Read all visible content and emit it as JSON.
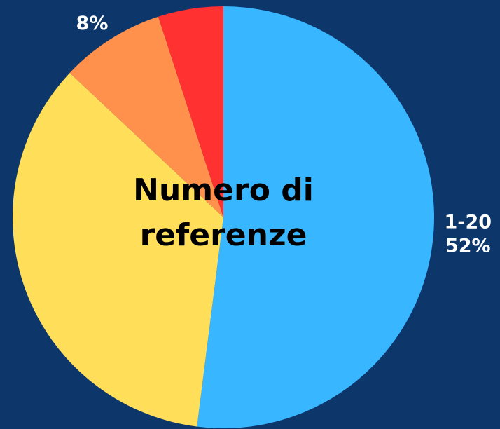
{
  "chart_data": {
    "type": "pie",
    "title": "Numero di referenze",
    "categories": [
      "1-20",
      null,
      null,
      null
    ],
    "values": [
      52,
      35,
      8,
      5
    ],
    "value_labels": [
      "52%",
      null,
      "8%",
      null
    ],
    "colors": [
      "#38b6ff",
      "#ffde59",
      "#ff914d",
      "#ff3131"
    ]
  }
}
